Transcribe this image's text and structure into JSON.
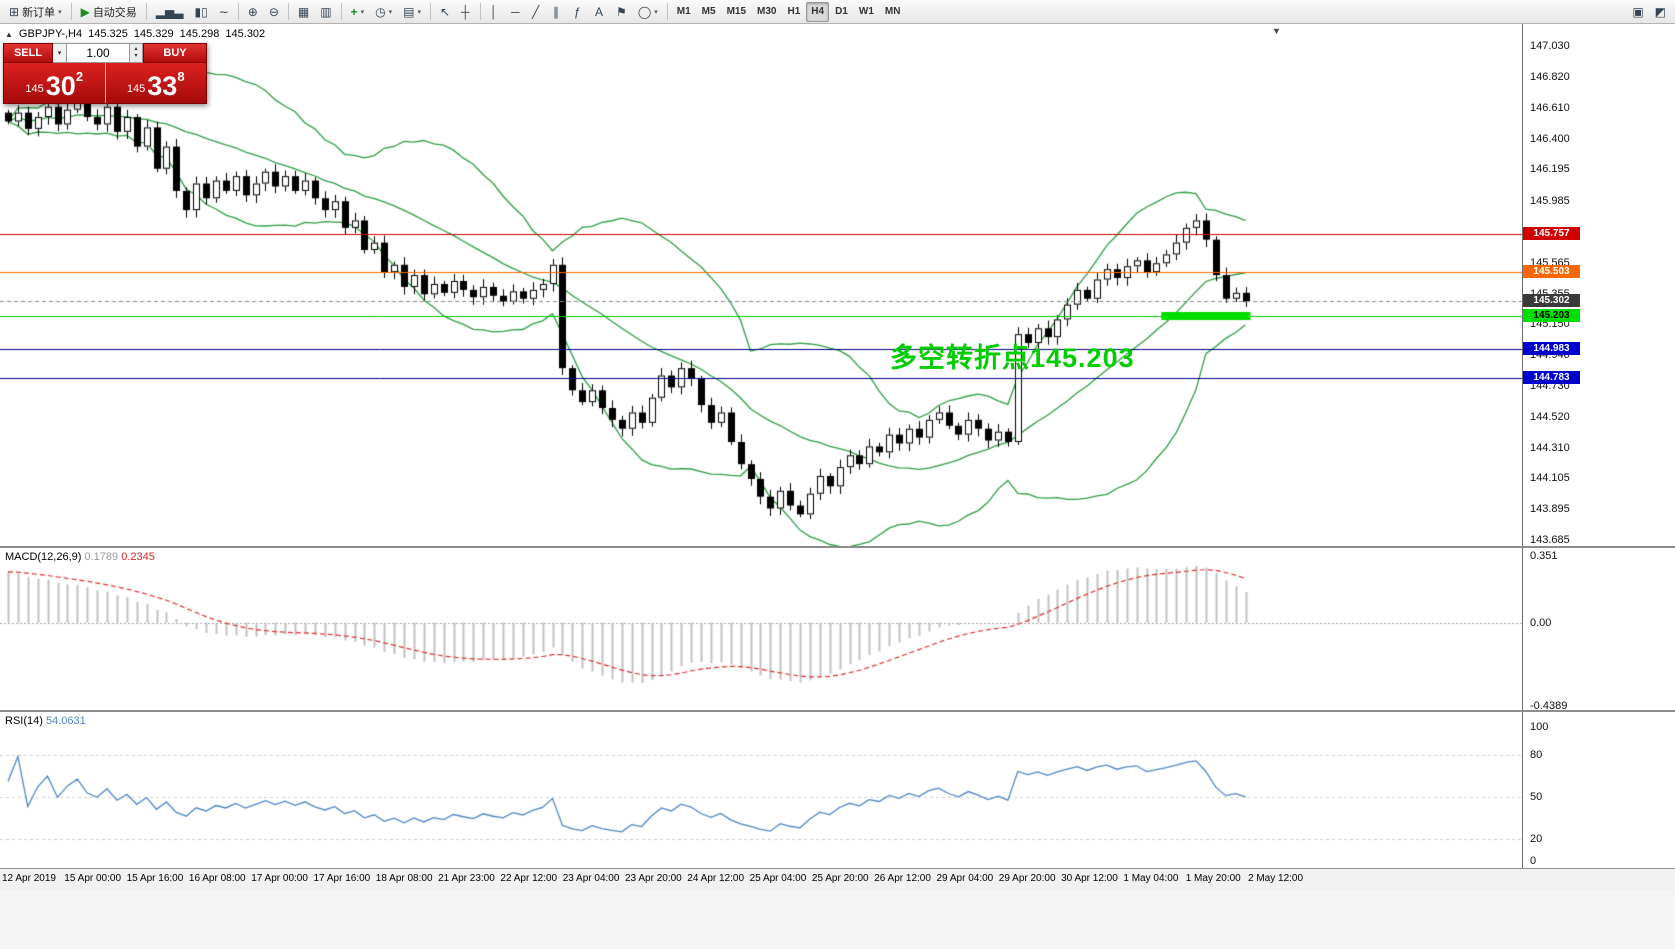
{
  "icons": {
    "caret_down": "▾",
    "spin_up": "▴",
    "spin_down": "▾",
    "collapse_triangle": "▲",
    "shift_marker": "▼"
  },
  "colors": {
    "band_green": "#2f9e44",
    "macd_hist": "#c0c0c0",
    "macd_signal": "#e03131",
    "rsi_line": "#4f86c6",
    "annotation_green": "#00cc00",
    "highlight_green": "#00dd00"
  },
  "toolbar": {
    "groups": [
      {
        "id": "orders",
        "items": [
          {
            "name": "new-order-button",
            "glyph": "⊞",
            "label": "新订单",
            "caret": true
          }
        ]
      },
      {
        "id": "autotrade",
        "items": [
          {
            "name": "auto-trading-button",
            "glyph": "▶",
            "label": "自动交易"
          }
        ]
      },
      {
        "id": "chart-types",
        "items": [
          {
            "name": "bar-chart-button",
            "glyph": "▂▅▃"
          },
          {
            "name": "candlestick-chart-button",
            "glyph": "▮▯"
          },
          {
            "name": "line-chart-button",
            "glyph": "∼"
          }
        ]
      },
      {
        "id": "zoom",
        "items": [
          {
            "name": "zoom-in-button",
            "glyph": "⊕"
          },
          {
            "name": "zoom-out-button",
            "glyph": "⊖"
          }
        ]
      },
      {
        "id": "windows",
        "items": [
          {
            "name": "tile-windows-button",
            "glyph": "▦"
          },
          {
            "name": "auto-arrange-button",
            "glyph": "▥"
          }
        ]
      },
      {
        "id": "tools",
        "items": [
          {
            "name": "indicators-button",
            "glyph": "+",
            "caret": true
          },
          {
            "name": "periods-button",
            "glyph": "◷",
            "caret": true
          },
          {
            "name": "templates-button",
            "glyph": "▤",
            "caret": true
          }
        ]
      },
      {
        "id": "cursors",
        "items": [
          {
            "name": "cursor-button",
            "glyph": "↖"
          },
          {
            "name": "crosshair-button",
            "glyph": "┼"
          }
        ]
      },
      {
        "id": "draw",
        "items": [
          {
            "name": "vertical-line-button",
            "glyph": "│"
          },
          {
            "name": "horizontal-line-button",
            "glyph": "─"
          },
          {
            "name": "trendline-button",
            "glyph": "╱"
          },
          {
            "name": "equidistant-channel-button",
            "glyph": "∥"
          },
          {
            "name": "fibonacci-button",
            "glyph": "ƒ"
          },
          {
            "name": "text-button",
            "glyph": "A"
          },
          {
            "name": "label-button",
            "glyph": "⚑"
          },
          {
            "name": "shapes-button",
            "glyph": "◯",
            "caret": true
          }
        ]
      }
    ],
    "timeframes": [
      "M1",
      "M5",
      "M15",
      "M30",
      "H1",
      "H4",
      "D1",
      "W1",
      "MN"
    ],
    "active_timeframe": "H4",
    "right_icons": [
      {
        "name": "chart-profile-button",
        "glyph": "▣"
      },
      {
        "name": "workspace-button",
        "glyph": "◩"
      }
    ]
  },
  "symbol_bar": {
    "symbol": "GBPJPY-,H4",
    "open": "145.325",
    "high": "145.329",
    "low": "145.298",
    "close": "145.302"
  },
  "trade_panel": {
    "sell_label": "SELL",
    "buy_label": "BUY",
    "volume": "1.00",
    "bid": {
      "prefix": "145",
      "big": "30",
      "sup": "2"
    },
    "ask": {
      "prefix": "145",
      "big": "33",
      "sup": "8"
    }
  },
  "annotation": {
    "text": "多空转折点145.203",
    "color": "#00cc00"
  },
  "price_axis": {
    "labels": [
      "147.030",
      "146.820",
      "146.610",
      "146.400",
      "146.195",
      "145.985",
      "145.775",
      "145.565",
      "145.355",
      "145.150",
      "144.940",
      "144.730",
      "144.520",
      "144.310",
      "144.105",
      "143.895",
      "143.685"
    ]
  },
  "price_lines": [
    {
      "id": "resistance-red",
      "price": 145.757,
      "label": "145.757",
      "color": "#d00000",
      "tag_bg": "#d00000",
      "tag_fg": "#ffffff",
      "dash": false
    },
    {
      "id": "resistance-orange",
      "price": 145.503,
      "label": "145.503",
      "color": "#ff6600",
      "tag_bg": "#ff6600",
      "tag_fg": "#ffffff",
      "dash": false
    },
    {
      "id": "bid-line",
      "price": 145.302,
      "label": "145.302",
      "color": "#8a8a8a",
      "tag_bg": "#3a3a3a",
      "tag_fg": "#ffffff",
      "dash": true
    },
    {
      "id": "pivot-green",
      "price": 145.203,
      "label": "145.203",
      "color": "#00cc00",
      "tag_bg": "#00e000",
      "tag_fg": "#000000",
      "dash": false
    },
    {
      "id": "support-navy-1",
      "price": 144.983,
      "label": "144.983",
      "color": "#000088",
      "tag_bg": "#0000cc",
      "tag_fg": "#ffffff",
      "dash": false
    },
    {
      "id": "support-navy-2",
      "price": 144.783,
      "label": "144.783",
      "color": "#000088",
      "tag_bg": "#0000cc",
      "tag_fg": "#ffffff",
      "dash": false
    }
  ],
  "macd_panel": {
    "name": "MACD(12,26,9)",
    "value1": "0.1789",
    "value2": "0.2345",
    "axis_labels": [
      "0.351",
      "0.00",
      "-0.4389"
    ],
    "max": 0.351,
    "min": -0.4389
  },
  "rsi_panel": {
    "name": "RSI(14)",
    "value": "54.0631",
    "axis_labels": [
      "100",
      "80",
      "50",
      "20",
      "0"
    ],
    "levels": [
      80,
      50,
      20
    ]
  },
  "time_axis": {
    "labels": [
      "12 Apr 2019",
      "15 Apr 00:00",
      "15 Apr 16:00",
      "16 Apr 08:00",
      "17 Apr 00:00",
      "17 Apr 16:00",
      "18 Apr 08:00",
      "21 Apr 23:00",
      "22 Apr 12:00",
      "23 Apr 04:00",
      "23 Apr 20:00",
      "24 Apr 12:00",
      "25 Apr 04:00",
      "25 Apr 20:00",
      "26 Apr 12:00",
      "29 Apr 04:00",
      "29 Apr 20:00",
      "30 Apr 12:00",
      "1 May 04:00",
      "1 May 20:00",
      "2 May 12:00"
    ]
  },
  "chart_data": {
    "type": "candlestick",
    "symbol": "GBPJPY",
    "timeframe": "H4",
    "y_range": [
      143.646,
      147.18
    ],
    "closes": [
      146.52,
      146.58,
      146.47,
      146.55,
      146.62,
      146.5,
      146.6,
      146.68,
      146.55,
      146.5,
      146.62,
      146.45,
      146.55,
      146.35,
      146.48,
      146.2,
      146.35,
      146.05,
      145.92,
      146.1,
      146.0,
      146.12,
      146.05,
      146.15,
      146.02,
      146.1,
      146.18,
      146.08,
      146.15,
      146.05,
      146.12,
      146.0,
      145.92,
      145.98,
      145.8,
      145.85,
      145.65,
      145.7,
      145.5,
      145.55,
      145.4,
      145.48,
      145.35,
      145.42,
      145.36,
      145.44,
      145.38,
      145.33,
      145.4,
      145.34,
      145.3,
      145.37,
      145.32,
      145.38,
      145.42,
      145.55,
      144.85,
      144.7,
      144.62,
      144.7,
      144.58,
      144.5,
      144.44,
      144.55,
      144.48,
      144.65,
      144.8,
      144.72,
      144.85,
      144.78,
      144.6,
      144.48,
      144.55,
      144.35,
      144.2,
      144.1,
      143.98,
      143.9,
      144.02,
      143.92,
      143.86,
      144.0,
      144.12,
      144.05,
      144.18,
      144.26,
      144.2,
      144.32,
      144.28,
      144.4,
      144.34,
      144.44,
      144.38,
      144.5,
      144.55,
      144.46,
      144.4,
      144.5,
      144.44,
      144.36,
      144.42,
      144.35,
      145.08,
      145.02,
      145.12,
      145.06,
      145.18,
      145.28,
      145.38,
      145.32,
      145.45,
      145.52,
      145.46,
      145.54,
      145.58,
      145.5,
      145.56,
      145.62,
      145.7,
      145.8,
      145.85,
      145.72,
      145.48,
      145.32,
      145.36,
      145.3
    ],
    "indicators": {
      "bollinger": {
        "period": 20,
        "deviation": 2
      },
      "macd": {
        "fast": 12,
        "slow": 26,
        "signal": 9
      },
      "rsi": {
        "period": 14
      }
    },
    "highlight_from": 117,
    "highlight_to": 125
  }
}
